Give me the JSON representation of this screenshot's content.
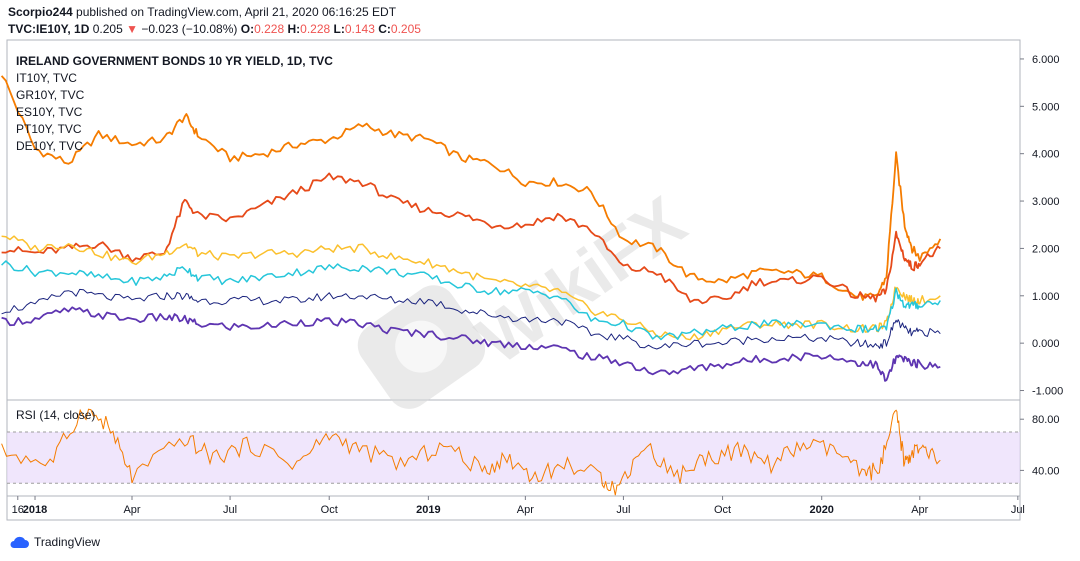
{
  "header": {
    "author": "Scorpio244",
    "published_text": "published on TradingView.com, April 21, 2020 06:16:25 EDT",
    "symbol": "TVC:IE10Y, 1D",
    "last": "0.205",
    "change_arrow": "▼",
    "change": "−0.023 (−10.08%)",
    "o_label": "O:",
    "o_val": "0.228",
    "h_label": "H:",
    "h_val": "0.228",
    "l_label": "L:",
    "l_val": "0.143",
    "c_label": "C:",
    "c_val": "0.205"
  },
  "legend": {
    "title": "IRELAND GOVERNMENT BONDS 10 YR YIELD, 1D, TVC",
    "items": [
      "IT10Y, TVC",
      "GR10Y, TVC",
      "ES10Y, TVC",
      "PT10Y, TVC",
      "DE10Y, TVC"
    ]
  },
  "rsi": {
    "label": "RSI (14, close)"
  },
  "watermark": "WikiFX",
  "footer": {
    "brand": "TradingView"
  },
  "colors": {
    "greece": "#f57c00",
    "italy": "#e64a19",
    "portugal": "#fbc02d",
    "spain": "#26c6da",
    "ireland": "#1a237e",
    "germany": "#5e35b1",
    "rsi_line": "#f57c00",
    "rsi_band": "#e9dcfb",
    "axis_text": "#131722"
  },
  "chart_data": [
    {
      "type": "line",
      "title": "IRELAND GOVERNMENT BONDS 10 YR YIELD, 1D, TVC",
      "x": [
        "2017-12-01",
        "2018-01-01",
        "2018-02-01",
        "2018-03-01",
        "2018-04-01",
        "2018-05-01",
        "2018-05-20",
        "2018-06-01",
        "2018-07-01",
        "2018-08-01",
        "2018-09-01",
        "2018-10-01",
        "2018-11-01",
        "2018-12-01",
        "2019-01-01",
        "2019-02-01",
        "2019-03-01",
        "2019-04-01",
        "2019-05-01",
        "2019-06-01",
        "2019-07-01",
        "2019-08-01",
        "2019-09-01",
        "2019-10-01",
        "2019-11-01",
        "2019-12-01",
        "2020-01-01",
        "2020-02-01",
        "2020-02-20",
        "2020-03-01",
        "2020-03-10",
        "2020-03-18",
        "2020-03-25",
        "2020-04-01",
        "2020-04-20"
      ],
      "xlim": [
        "2017-12-06",
        "2020-07-03"
      ],
      "x_ticks": [
        {
          "date": "2017-12-16",
          "label": "16"
        },
        {
          "date": "2018-01-01",
          "label": "2018"
        },
        {
          "date": "2018-04-01",
          "label": "Apr"
        },
        {
          "date": "2018-07-01",
          "label": "Jul"
        },
        {
          "date": "2018-10-01",
          "label": "Oct"
        },
        {
          "date": "2019-01-01",
          "label": "2019"
        },
        {
          "date": "2019-04-01",
          "label": "Apr"
        },
        {
          "date": "2019-07-01",
          "label": "Jul"
        },
        {
          "date": "2019-10-01",
          "label": "Oct"
        },
        {
          "date": "2020-01-01",
          "label": "2020"
        },
        {
          "date": "2020-04-01",
          "label": "Apr"
        },
        {
          "date": "2020-07-01",
          "label": "Jul"
        }
      ],
      "ylim": [
        -1.2,
        6.4
      ],
      "y_ticks": [
        -1.0,
        0.0,
        1.0,
        2.0,
        3.0,
        4.0,
        5.0,
        6.0
      ],
      "y_tick_labels": [
        "-1.000",
        "0.000",
        "1.000",
        "2.000",
        "3.000",
        "4.000",
        "5.000",
        "6.000"
      ],
      "series": [
        {
          "name": "GR10Y, TVC",
          "color_key": "greece",
          "values": [
            5.7,
            4.1,
            3.8,
            4.4,
            4.2,
            4.3,
            4.8,
            4.4,
            3.9,
            4.0,
            4.2,
            4.3,
            4.6,
            4.4,
            4.3,
            3.9,
            3.8,
            3.4,
            3.4,
            3.2,
            2.2,
            2.0,
            1.4,
            1.3,
            1.5,
            1.5,
            1.4,
            1.0,
            0.95,
            1.4,
            3.95,
            2.5,
            2.0,
            1.8,
            2.2
          ]
        },
        {
          "name": "IT10Y, TVC",
          "color_key": "italy",
          "values": [
            2.0,
            1.9,
            2.0,
            2.1,
            1.8,
            1.9,
            3.0,
            2.7,
            2.6,
            2.9,
            3.2,
            3.5,
            3.4,
            3.0,
            2.8,
            2.7,
            2.5,
            2.5,
            2.7,
            2.4,
            1.6,
            1.5,
            0.9,
            0.9,
            1.3,
            1.3,
            1.4,
            1.0,
            0.95,
            1.1,
            2.3,
            1.8,
            1.6,
            1.7,
            2.0
          ]
        },
        {
          "name": "PT10Y, TVC",
          "color_key": "portugal",
          "values": [
            2.3,
            2.0,
            2.1,
            1.9,
            1.7,
            1.9,
            2.1,
            1.9,
            1.8,
            1.9,
            1.9,
            2.0,
            2.0,
            1.8,
            1.7,
            1.5,
            1.3,
            1.2,
            1.1,
            0.7,
            0.5,
            0.2,
            0.1,
            0.3,
            0.4,
            0.4,
            0.4,
            0.3,
            0.3,
            0.4,
            1.2,
            1.0,
            0.9,
            0.9,
            1.0
          ]
        },
        {
          "name": "ES10Y, TVC",
          "color_key": "spain",
          "values": [
            1.7,
            1.5,
            1.5,
            1.4,
            1.3,
            1.4,
            1.6,
            1.4,
            1.3,
            1.4,
            1.5,
            1.6,
            1.6,
            1.5,
            1.4,
            1.2,
            1.1,
            1.1,
            1.0,
            0.5,
            0.4,
            0.1,
            0.2,
            0.3,
            0.4,
            0.4,
            0.4,
            0.3,
            0.3,
            0.3,
            1.1,
            0.8,
            0.8,
            0.8,
            0.9
          ]
        },
        {
          "name": "IE10Y",
          "color_key": "ireland",
          "values": [
            0.7,
            0.8,
            1.1,
            1.0,
            0.9,
            1.0,
            1.0,
            0.9,
            0.9,
            0.9,
            0.9,
            1.0,
            1.0,
            0.9,
            0.9,
            0.7,
            0.6,
            0.5,
            0.5,
            0.2,
            0.1,
            -0.1,
            0.0,
            0.0,
            0.1,
            0.1,
            0.1,
            0.0,
            -0.05,
            0.0,
            0.5,
            0.3,
            0.2,
            0.25,
            0.2
          ]
        },
        {
          "name": "DE10Y, TVC",
          "color_key": "germany",
          "values": [
            0.45,
            0.5,
            0.7,
            0.6,
            0.5,
            0.55,
            0.5,
            0.4,
            0.35,
            0.35,
            0.45,
            0.45,
            0.4,
            0.25,
            0.2,
            0.1,
            0.0,
            -0.05,
            -0.1,
            -0.3,
            -0.4,
            -0.65,
            -0.55,
            -0.45,
            -0.35,
            -0.3,
            -0.25,
            -0.4,
            -0.45,
            -0.8,
            -0.3,
            -0.35,
            -0.4,
            -0.45,
            -0.5
          ]
        }
      ]
    },
    {
      "type": "line",
      "title": "RSI (14, close)",
      "x": [
        "2017-12-01",
        "2018-01-15",
        "2018-02-15",
        "2018-03-10",
        "2018-04-01",
        "2018-05-20",
        "2018-06-15",
        "2018-07-20",
        "2018-09-01",
        "2018-10-01",
        "2018-11-01",
        "2018-12-10",
        "2019-01-15",
        "2019-02-20",
        "2019-03-15",
        "2019-04-10",
        "2019-05-10",
        "2019-06-10",
        "2019-06-25",
        "2019-07-20",
        "2019-08-20",
        "2019-09-15",
        "2019-10-15",
        "2019-11-15",
        "2019-12-15",
        "2020-01-15",
        "2020-02-10",
        "2020-02-25",
        "2020-03-10",
        "2020-03-18",
        "2020-03-25",
        "2020-04-05",
        "2020-04-20"
      ],
      "xlim": [
        "2017-12-06",
        "2020-07-03"
      ],
      "ylim": [
        20,
        95
      ],
      "y_ticks": [
        40.0,
        80.0
      ],
      "y_tick_labels": [
        "40.00",
        "80.00"
      ],
      "band": [
        30,
        70
      ],
      "series": [
        {
          "name": "RSI (14, close)",
          "color_key": "rsi_line",
          "values": [
            55,
            45,
            88,
            75,
            35,
            65,
            50,
            60,
            45,
            68,
            55,
            45,
            60,
            40,
            50,
            35,
            45,
            35,
            25,
            60,
            35,
            50,
            55,
            45,
            60,
            55,
            35,
            45,
            85,
            45,
            55,
            55,
            48
          ]
        }
      ]
    }
  ]
}
